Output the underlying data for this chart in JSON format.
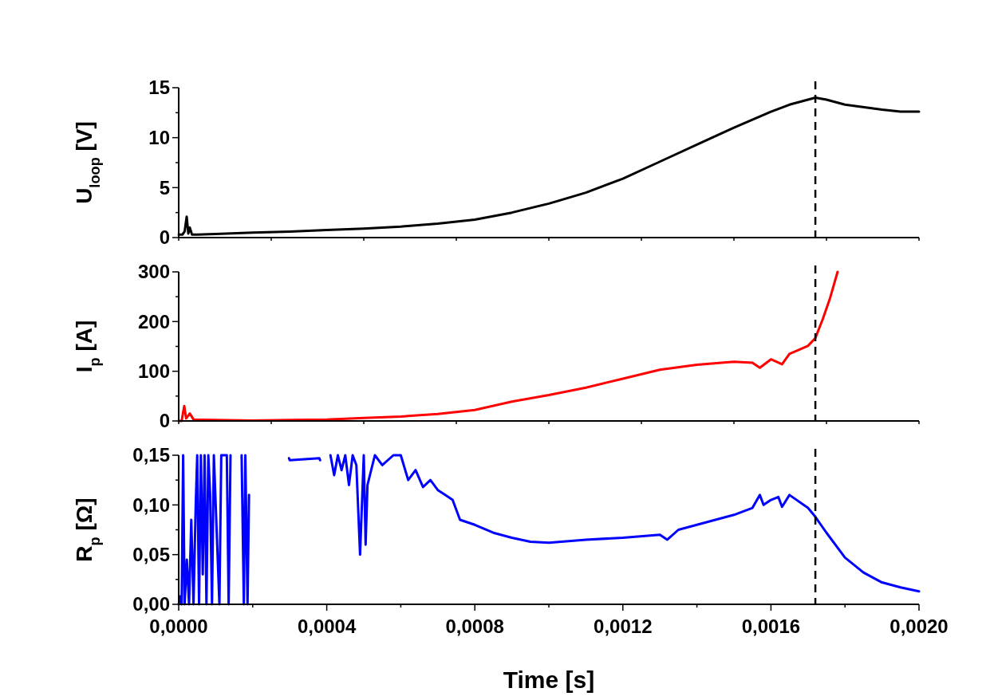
{
  "chart_data": [
    {
      "type": "line",
      "ylabel": "U$_{loop}$ [V]",
      "xlim": [
        0,
        0.002
      ],
      "xticks": [
        {
          "value": 0,
          "label": null
        },
        {
          "value": 0.00025,
          "label": null
        },
        {
          "value": 0.0005,
          "label": null
        },
        {
          "value": 0.00075,
          "label": null
        },
        {
          "value": 0.001,
          "label": null
        },
        {
          "value": 0.00125,
          "label": null
        },
        {
          "value": 0.0015,
          "label": null
        },
        {
          "value": 0.00175,
          "label": null
        },
        {
          "value": 0.002,
          "label": null
        }
      ],
      "ylim": [
        0,
        15
      ],
      "yticks": [
        0,
        {
          "value": 2.5,
          "label": null
        },
        5,
        {
          "value": 7.5,
          "label": null
        },
        10,
        {
          "value": 12.5,
          "label": null
        },
        15
      ],
      "tick_labels": "y",
      "ref_lines": [
        {
          "axis": "x",
          "value": 0.00172,
          "color": "#000000",
          "line_style": "dashed"
        }
      ],
      "x": [
        0,
        1e-05,
        1.6e-05,
        2.16e-05,
        2.6e-05,
        3e-05,
        3.6e-05,
        5e-05,
        0.0001,
        0.0002,
        0.0003,
        0.0004,
        0.0005,
        0.0006,
        0.0007,
        0.0008,
        0.0009,
        0.001,
        0.0011,
        0.0012,
        0.0013,
        0.0014,
        0.0015,
        0.0016,
        0.00165,
        0.0017,
        0.00172,
        0.00175,
        0.0018,
        0.0019,
        0.00195,
        0.002
      ],
      "series": [
        {
          "color": "#000000",
          "values": [
            0.3,
            0.3,
            0.6,
            2.1,
            0.4,
            1.0,
            0.3,
            0.3,
            0.35,
            0.5,
            0.6,
            0.75,
            0.9,
            1.1,
            1.4,
            1.8,
            2.5,
            3.4,
            4.5,
            5.9,
            7.6,
            9.3,
            11.0,
            12.6,
            13.3,
            13.8,
            14.0,
            13.8,
            13.3,
            12.8,
            12.6,
            12.6
          ]
        }
      ]
    },
    {
      "type": "line",
      "ylabel": "I$_{p}$ [A]",
      "xlim": [
        0,
        0.002
      ],
      "xticks": [
        {
          "value": 0,
          "label": null
        },
        {
          "value": 0.00025,
          "label": null
        },
        {
          "value": 0.0005,
          "label": null
        },
        {
          "value": 0.00075,
          "label": null
        },
        {
          "value": 0.001,
          "label": null
        },
        {
          "value": 0.00125,
          "label": null
        },
        {
          "value": 0.0015,
          "label": null
        },
        {
          "value": 0.00175,
          "label": null
        },
        {
          "value": 0.002,
          "label": null
        }
      ],
      "ylim": [
        0,
        300
      ],
      "yticks": [
        0,
        {
          "value": 50,
          "label": null
        },
        100,
        {
          "value": 150,
          "label": null
        },
        200,
        {
          "value": 250,
          "label": null
        },
        300
      ],
      "tick_labels": "y",
      "ref_lines": [
        {
          "axis": "x",
          "value": 0.00172,
          "color": "#000000",
          "line_style": "dashed"
        }
      ],
      "x": [
        0,
        8e-06,
        1.5e-05,
        2e-05,
        3e-05,
        4e-05,
        0.0001,
        0.0002,
        0.0003,
        0.0004,
        0.0005,
        0.0006,
        0.0007,
        0.0008,
        0.0009,
        0.001,
        0.0011,
        0.0012,
        0.0013,
        0.0014,
        0.0015,
        0.00155,
        0.00157,
        0.0016,
        0.00163,
        0.00165,
        0.0017,
        0.00172,
        0.00174,
        0.00176,
        0.00178
      ],
      "series": [
        {
          "color": "#ff0000",
          "values": [
            0,
            0,
            30,
            5,
            15,
            3,
            2,
            1,
            2,
            3,
            6,
            9,
            14,
            22,
            39,
            52,
            67,
            85,
            103,
            113,
            119,
            117,
            107,
            124,
            114,
            135,
            151,
            167,
            205,
            248,
            300
          ]
        }
      ]
    },
    {
      "type": "line",
      "ylabel": "R$_{p}$ [Ω]",
      "xlabel": "Time [s]",
      "xlim": [
        0,
        0.002
      ],
      "xticks": [
        {
          "value": 0,
          "label": "0,0000"
        },
        {
          "value": 0.0002,
          "label": null
        },
        {
          "value": 0.0004,
          "label": "0,0004"
        },
        {
          "value": 0.0006,
          "label": null
        },
        {
          "value": 0.0008,
          "label": "0,0008"
        },
        {
          "value": 0.001,
          "label": null
        },
        {
          "value": 0.0012,
          "label": "0,0012"
        },
        {
          "value": 0.0014,
          "label": null
        },
        {
          "value": 0.0016,
          "label": "0,0016"
        },
        {
          "value": 0.0018,
          "label": null
        },
        {
          "value": 0.002,
          "label": "0,0020"
        }
      ],
      "ylim": [
        0,
        0.15
      ],
      "yticks": [
        {
          "value": 0,
          "label": "0,00"
        },
        {
          "value": 0.025,
          "label": null
        },
        {
          "value": 0.05,
          "label": "0,05"
        },
        {
          "value": 0.075,
          "label": null
        },
        {
          "value": 0.1,
          "label": "0,10"
        },
        {
          "value": 0.125,
          "label": null
        },
        {
          "value": 0.15,
          "label": "0,15"
        }
      ],
      "ref_lines": [
        {
          "axis": "x",
          "value": 0.00172,
          "color": "#000000",
          "line_style": "dashed"
        }
      ],
      "x": [
        0,
        4e-06,
        8e-06,
        1.2e-05,
        1.6e-05,
        2.2e-05,
        2.8e-05,
        3.4e-05,
        4e-05,
        4.6e-05,
        5e-05,
        5.5e-05,
        6e-05,
        6.5e-05,
        7e-05,
        7.5e-05,
        8e-05,
        8.5e-05,
        9e-05,
        9.5e-05,
        0.00011,
        0.000115,
        0.00013,
        0.000135,
        0.00014,
        0.000155,
        0.00017,
        0.000176,
        0.00018,
        0.000186,
        0.00019,
        0.0002,
        0.000298,
        0.0003,
        0.00038,
        0.000382,
        0.0004,
        0.00041,
        0.00042,
        0.00043,
        0.00044,
        0.00045,
        0.00046,
        0.00047,
        0.00048,
        0.00049,
        0.0005,
        0.000505,
        0.00051,
        0.00053,
        0.00055,
        0.00058,
        0.0006,
        0.00062,
        0.00064,
        0.00066,
        0.00068,
        0.0007,
        0.00072,
        0.00074,
        0.00076,
        0.0008,
        0.00085,
        0.0009,
        0.00095,
        0.001,
        0.0011,
        0.0012,
        0.0013,
        0.00132,
        0.00135,
        0.0014,
        0.0015,
        0.00155,
        0.00157,
        0.00158,
        0.0016,
        0.00162,
        0.00163,
        0.00165,
        0.0017,
        0.00172,
        0.00175,
        0.0018,
        0.00185,
        0.0019,
        0.00195,
        0.002
      ],
      "series": [
        {
          "color": "#0000ff",
          "values": [
            0,
            0.008,
            0,
            0.15,
            0,
            0.045,
            0,
            0.085,
            0,
            0.1,
            0.15,
            0,
            0.15,
            0.03,
            0.15,
            0,
            0.15,
            0.11,
            0,
            0.15,
            0,
            0.15,
            0.15,
            0,
            0.15,
            null,
            0.15,
            0,
            0.15,
            0,
            0.11,
            null,
            0.147,
            0.145,
            0.147,
            0.145,
            null,
            0.15,
            0.13,
            0.15,
            0.135,
            0.15,
            0.12,
            0.15,
            0.14,
            0.05,
            0.15,
            0.06,
            0.12,
            0.15,
            0.14,
            0.15,
            0.15,
            0.125,
            0.135,
            0.118,
            0.125,
            0.115,
            0.11,
            0.105,
            0.085,
            0.08,
            0.072,
            0.067,
            0.063,
            0.062,
            0.065,
            0.067,
            0.07,
            0.065,
            0.075,
            0.08,
            0.09,
            0.097,
            0.11,
            0.1,
            0.105,
            0.108,
            0.098,
            0.11,
            0.097,
            0.088,
            0.072,
            0.047,
            0.032,
            0.022,
            0.017,
            0.013
          ]
        }
      ]
    }
  ]
}
